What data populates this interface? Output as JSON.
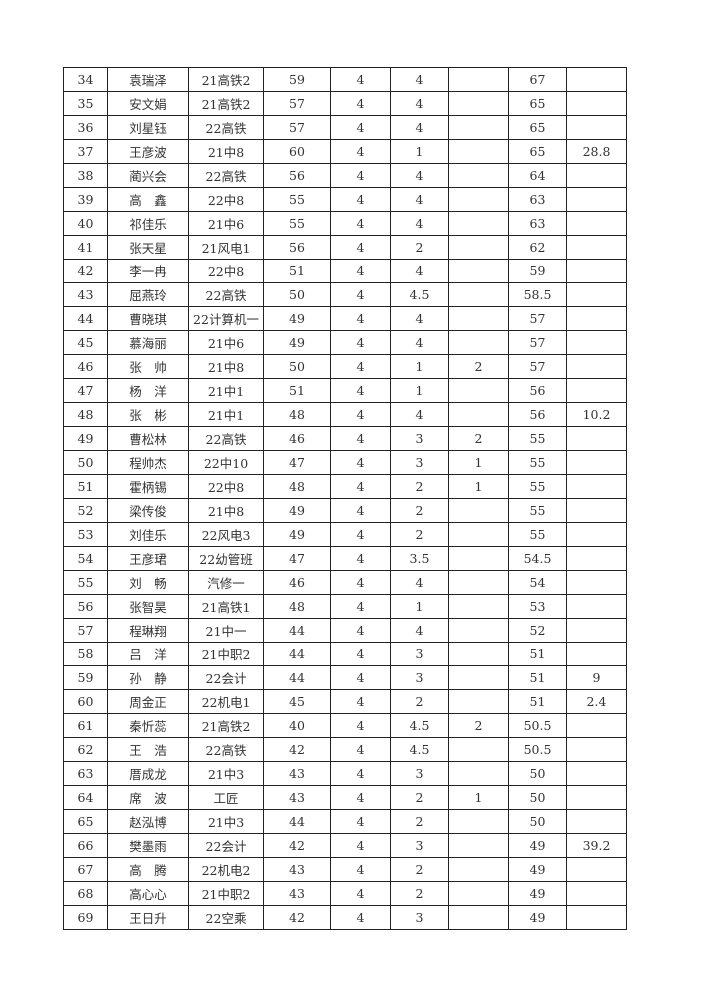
{
  "table": {
    "rows": [
      [
        "34",
        "袁瑞泽",
        "21高铁2",
        "59",
        "4",
        "4",
        "",
        "67",
        ""
      ],
      [
        "35",
        "安文娟",
        "21高铁2",
        "57",
        "4",
        "4",
        "",
        "65",
        ""
      ],
      [
        "36",
        "刘星钰",
        "22高铁",
        "57",
        "4",
        "4",
        "",
        "65",
        ""
      ],
      [
        "37",
        "王彦波",
        "21中8",
        "60",
        "4",
        "1",
        "",
        "65",
        "28.8"
      ],
      [
        "38",
        "蔺兴会",
        "22高铁",
        "56",
        "4",
        "4",
        "",
        "64",
        ""
      ],
      [
        "39",
        "高　鑫",
        "22中8",
        "55",
        "4",
        "4",
        "",
        "63",
        ""
      ],
      [
        "40",
        "祁佳乐",
        "21中6",
        "55",
        "4",
        "4",
        "",
        "63",
        ""
      ],
      [
        "41",
        "张天星",
        "21风电1",
        "56",
        "4",
        "2",
        "",
        "62",
        ""
      ],
      [
        "42",
        "李一冉",
        "22中8",
        "51",
        "4",
        "4",
        "",
        "59",
        ""
      ],
      [
        "43",
        "屈燕玲",
        "22高铁",
        "50",
        "4",
        "4.5",
        "",
        "58.5",
        ""
      ],
      [
        "44",
        "曹晓琪",
        "22计算机一",
        "49",
        "4",
        "4",
        "",
        "57",
        ""
      ],
      [
        "45",
        "慕海丽",
        "21中6",
        "49",
        "4",
        "4",
        "",
        "57",
        ""
      ],
      [
        "46",
        "张　帅",
        "21中8",
        "50",
        "4",
        "1",
        "2",
        "57",
        ""
      ],
      [
        "47",
        "杨　洋",
        "21中1",
        "51",
        "4",
        "1",
        "",
        "56",
        ""
      ],
      [
        "48",
        "张　彬",
        "21中1",
        "48",
        "4",
        "4",
        "",
        "56",
        "10.2"
      ],
      [
        "49",
        "曹松林",
        "22高铁",
        "46",
        "4",
        "3",
        "2",
        "55",
        ""
      ],
      [
        "50",
        "程帅杰",
        "22中10",
        "47",
        "4",
        "3",
        "1",
        "55",
        ""
      ],
      [
        "51",
        "霍柄锡",
        "22中8",
        "48",
        "4",
        "2",
        "1",
        "55",
        ""
      ],
      [
        "52",
        "梁传俊",
        "21中8",
        "49",
        "4",
        "2",
        "",
        "55",
        ""
      ],
      [
        "53",
        "刘佳乐",
        "22风电3",
        "49",
        "4",
        "2",
        "",
        "55",
        ""
      ],
      [
        "54",
        "王彦珺",
        "22幼管班",
        "47",
        "4",
        "3.5",
        "",
        "54.5",
        ""
      ],
      [
        "55",
        "刘　畅",
        "汽修一",
        "46",
        "4",
        "4",
        "",
        "54",
        ""
      ],
      [
        "56",
        "张智昊",
        "21高铁1",
        "48",
        "4",
        "1",
        "",
        "53",
        ""
      ],
      [
        "57",
        "程琳翔",
        "21中一",
        "44",
        "4",
        "4",
        "",
        "52",
        ""
      ],
      [
        "58",
        "吕　洋",
        "21中职2",
        "44",
        "4",
        "3",
        "",
        "51",
        ""
      ],
      [
        "59",
        "孙　静",
        "22会计",
        "44",
        "4",
        "3",
        "",
        "51",
        "9"
      ],
      [
        "60",
        "周金正",
        "22机电1",
        "45",
        "4",
        "2",
        "",
        "51",
        "2.4"
      ],
      [
        "61",
        "秦忻蕊",
        "21高铁2",
        "40",
        "4",
        "4.5",
        "2",
        "50.5",
        ""
      ],
      [
        "62",
        "王　浩",
        "22高铁",
        "42",
        "4",
        "4.5",
        "",
        "50.5",
        ""
      ],
      [
        "63",
        "厝成龙",
        "21中3",
        "43",
        "4",
        "3",
        "",
        "50",
        ""
      ],
      [
        "64",
        "席　波",
        "工匠",
        "43",
        "4",
        "2",
        "1",
        "50",
        ""
      ],
      [
        "65",
        "赵泓博",
        "21中3",
        "44",
        "4",
        "2",
        "",
        "50",
        ""
      ],
      [
        "66",
        "樊墨雨",
        "22会计",
        "42",
        "4",
        "3",
        "",
        "49",
        "39.2"
      ],
      [
        "67",
        "高　腾",
        "22机电2",
        "43",
        "4",
        "2",
        "",
        "49",
        ""
      ],
      [
        "68",
        "高心心",
        "21中职2",
        "43",
        "4",
        "2",
        "",
        "49",
        ""
      ],
      [
        "69",
        "王日升",
        "22空乘",
        "42",
        "4",
        "3",
        "",
        "49",
        ""
      ]
    ]
  }
}
